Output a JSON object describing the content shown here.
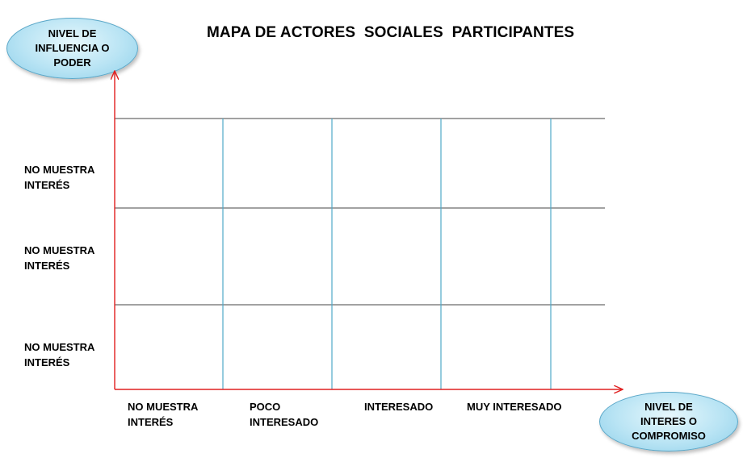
{
  "title": "MAPA DE ACTORES  SOCIALES  PARTICIPANTES",
  "y_axis_label": "NIVEL DE\nINFLUENCIA O\nPODER",
  "x_axis_label": "NIVEL DE\nINTERES  O\nCOMPROMISO",
  "row_labels": [
    "NO MUESTRA\nINTERÉS",
    "NO MUESTRA\nINTERÉS",
    "NO MUESTRA\nINTERÉS"
  ],
  "column_labels": [
    "NO MUESTRA\nINTERÉS",
    "POCO\nINTERESADO",
    "INTERESADO",
    "MUY INTERESADO"
  ],
  "colors": {
    "axis": "#e02020",
    "horizontal_grid": "#6b6b6b",
    "vertical_grid": "#4fa9c9",
    "ellipse_fill": "#b9e4f4"
  }
}
